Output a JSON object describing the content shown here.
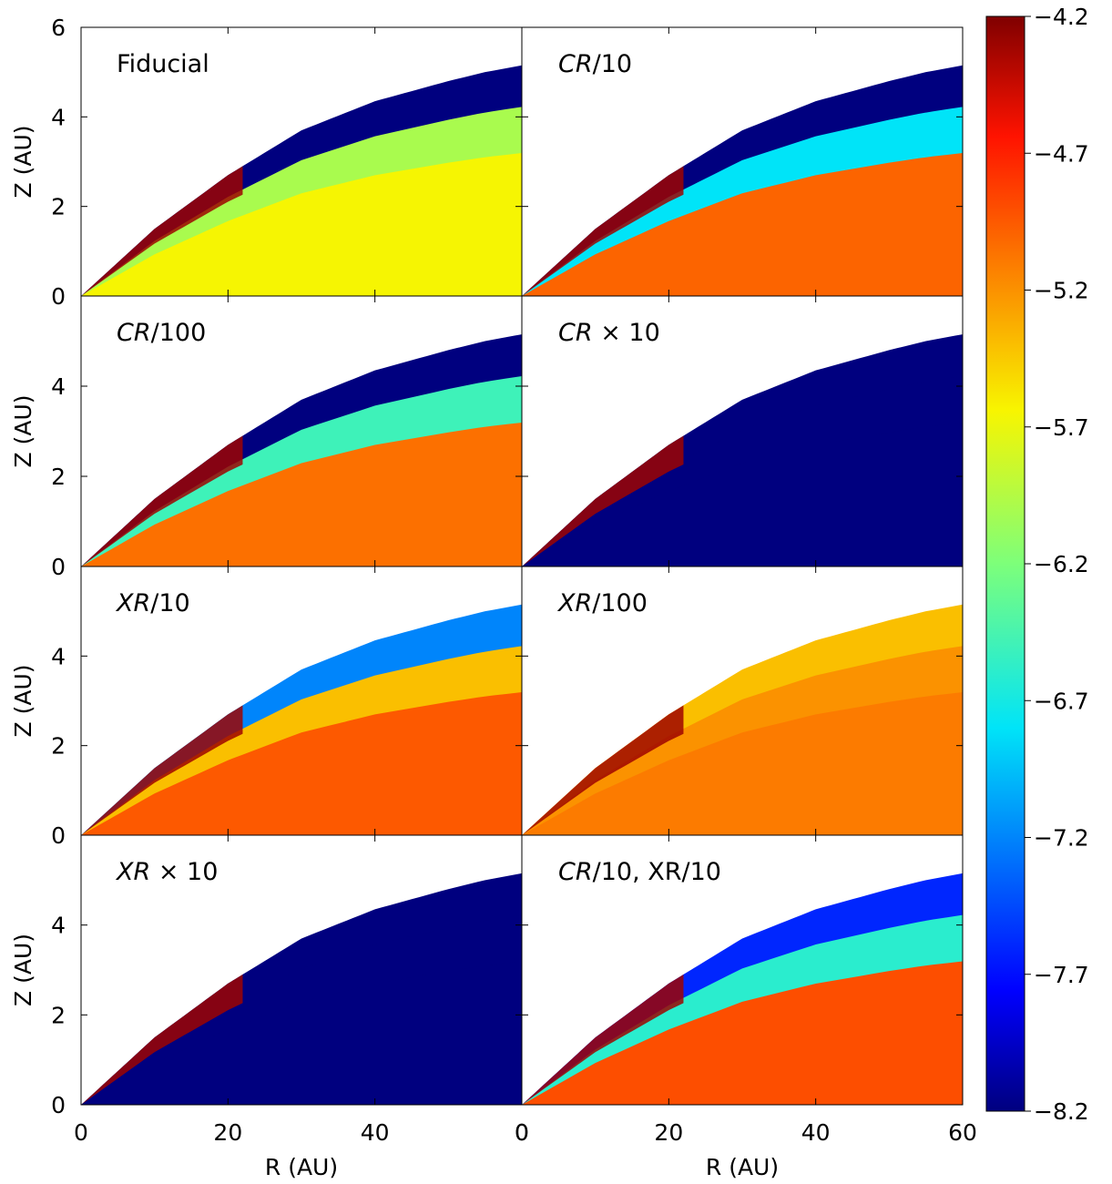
{
  "chart_data": {
    "type": "heatmap",
    "layout": {
      "rows": 4,
      "cols": 2
    },
    "xlabel": "R (AU)",
    "ylabel": "Z (AU)",
    "xlim": [
      0,
      60
    ],
    "ylim": [
      0,
      6
    ],
    "x_ticks": [
      0,
      20,
      40,
      60
    ],
    "x_tick_labels_left": [
      "0",
      "20",
      "40",
      "0"
    ],
    "x_tick_labels_right": [
      "0",
      "20",
      "40",
      "60"
    ],
    "y_ticks": [
      0,
      2,
      4,
      6
    ],
    "y_tick_labels_top": [
      "0",
      "2",
      "4",
      "6"
    ],
    "y_tick_labels_other": [
      "0",
      "2",
      "4",
      ""
    ],
    "disk_surface": {
      "x": [
        0,
        10,
        20,
        30,
        40,
        50,
        55,
        60
      ],
      "z": [
        0,
        1.5,
        2.7,
        3.7,
        4.35,
        4.8,
        5.0,
        5.15
      ]
    },
    "colorbar": {
      "min": -8.2,
      "max": -4.2,
      "ticks": [
        -4.2,
        -4.7,
        -5.2,
        -5.7,
        -6.2,
        -6.7,
        -7.2,
        -7.7,
        -8.2
      ],
      "tick_labels": [
        "−4.2",
        "−4.7",
        "−5.2",
        "−5.7",
        "−6.2",
        "−6.7",
        "−7.2",
        "−7.7",
        "−8.2"
      ],
      "colormap": "jet"
    },
    "panels": [
      {
        "label_plain": "Fiducial",
        "label_italic": "",
        "label_rest": "",
        "upper_value": -8.2,
        "interior_value": -5.65,
        "mid_value": -6.0
      },
      {
        "label_plain": "",
        "label_italic": "CR",
        "label_rest": "/10",
        "upper_value": -8.2,
        "interior_value": -5.0,
        "mid_value": -6.8
      },
      {
        "label_plain": "",
        "label_italic": "CR",
        "label_rest": "/100",
        "upper_value": -8.2,
        "interior_value": -5.05,
        "mid_value": -6.5
      },
      {
        "label_plain": "",
        "label_italic": "CR",
        "label_rest": " × 10",
        "upper_value": -8.2,
        "interior_value": -8.2,
        "mid_value": -8.2
      },
      {
        "label_plain": "",
        "label_italic": "XR",
        "label_rest": "/10",
        "upper_value": -7.2,
        "interior_value": -4.95,
        "mid_value": -5.4
      },
      {
        "label_plain": "",
        "label_italic": "XR",
        "label_rest": "/100",
        "upper_value": -5.4,
        "interior_value": -5.1,
        "mid_value": -5.2
      },
      {
        "label_plain": "",
        "label_italic": "XR",
        "label_rest": " × 10",
        "upper_value": -8.2,
        "interior_value": -8.2,
        "mid_value": -8.2
      },
      {
        "label_plain": "",
        "label_italic": "CR",
        "label_rest": "/10, XR/10",
        "upper_value": -7.6,
        "interior_value": -4.9,
        "mid_value": -6.6
      }
    ]
  }
}
